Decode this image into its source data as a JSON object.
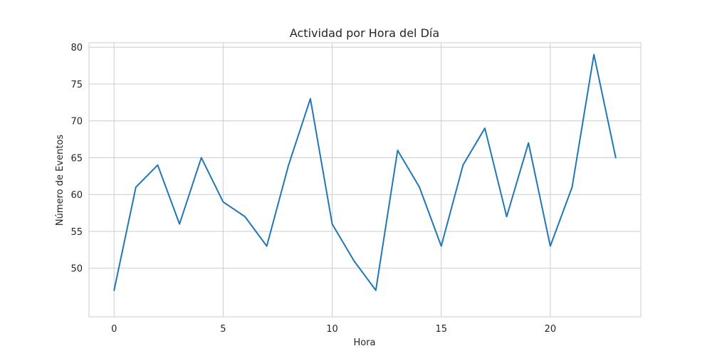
{
  "chart_data": {
    "type": "line",
    "title": "Actividad por Hora del Día",
    "xlabel": "Hora",
    "ylabel": "Número de Eventos",
    "xlim": [
      -1.15,
      24.15
    ],
    "ylim": [
      43.4,
      80.6
    ],
    "xticks": [
      0,
      5,
      10,
      15,
      20
    ],
    "yticks": [
      50,
      55,
      60,
      65,
      70,
      75,
      80
    ],
    "grid": true,
    "series": [
      {
        "color": "#1f77b4",
        "x": [
          0,
          1,
          2,
          3,
          4,
          5,
          6,
          7,
          8,
          9,
          10,
          11,
          12,
          13,
          14,
          15,
          16,
          17,
          18,
          19,
          20,
          21,
          22,
          23
        ],
        "y": [
          47,
          61,
          64,
          56,
          65,
          59,
          57,
          53,
          64,
          73,
          56,
          51,
          47,
          66,
          61,
          53,
          64,
          69,
          57,
          67,
          53,
          61,
          79,
          65
        ]
      }
    ]
  }
}
